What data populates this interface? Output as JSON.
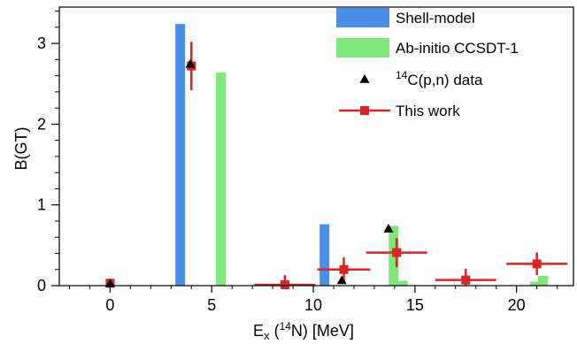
{
  "chart_data": {
    "type": "bar",
    "xlabel": {
      "main": "E",
      "sub": "x",
      "open": " (",
      "sup": "14",
      "rest": "N) [MeV]"
    },
    "ylabel": "B(GT)",
    "xlim": [
      -2.5,
      22.8
    ],
    "ylim": [
      0,
      3.45
    ],
    "x_ticks": [
      0,
      5,
      10,
      15,
      20
    ],
    "y_ticks": [
      0,
      1,
      2,
      3
    ],
    "legend": {
      "placement": "top-right",
      "entries": [
        {
          "kind": "shell",
          "label": "Shell-model"
        },
        {
          "kind": "abinitio",
          "label": "Ab-initio CCSDT-1"
        },
        {
          "kind": "data14c",
          "sup": "14",
          "label": "C(p,n) data"
        },
        {
          "kind": "thiswork",
          "label": "This work"
        }
      ]
    },
    "series": [
      {
        "name": "Shell-model",
        "kind": "bars",
        "color": "#4a8fe7",
        "points": [
          {
            "x": 3.45,
            "y": 3.24
          },
          {
            "x": 10.55,
            "y": 0.76
          }
        ]
      },
      {
        "name": "Ab-initio CCSDT-1",
        "kind": "bars",
        "color": "#7ee87a",
        "points": [
          {
            "x": 5.45,
            "y": 2.64
          },
          {
            "x": 13.95,
            "y": 0.74
          },
          {
            "x": 14.4,
            "y": 0.06
          },
          {
            "x": 21.3,
            "y": 0.12
          },
          {
            "x": 20.9,
            "y": 0.05
          }
        ]
      },
      {
        "name": "14C(p,n) data",
        "kind": "markers",
        "color": "#000000",
        "points": [
          {
            "x": 0.0,
            "y": 0.02
          },
          {
            "x": 3.95,
            "y": 2.74
          },
          {
            "x": 11.4,
            "y": 0.06
          },
          {
            "x": 13.7,
            "y": 0.7
          }
        ]
      },
      {
        "name": "This work",
        "kind": "errorbars",
        "color": "#dd2222",
        "points": [
          {
            "x": 0.0,
            "y": 0.03,
            "xerr": 0.0,
            "yerr": 0.0
          },
          {
            "x": 4.0,
            "y": 2.72,
            "xerr": 0.0,
            "yerr": 0.3
          },
          {
            "x": 8.6,
            "y": 0.01,
            "xerr": 1.5,
            "yerr": 0.12
          },
          {
            "x": 11.5,
            "y": 0.2,
            "xerr": 1.3,
            "yerr": 0.15
          },
          {
            "x": 14.1,
            "y": 0.41,
            "xerr": 1.5,
            "yerr": 0.18
          },
          {
            "x": 17.5,
            "y": 0.07,
            "xerr": 1.5,
            "yerr": 0.14
          },
          {
            "x": 21.0,
            "y": 0.27,
            "xerr": 1.5,
            "yerr": 0.14
          }
        ]
      }
    ]
  }
}
